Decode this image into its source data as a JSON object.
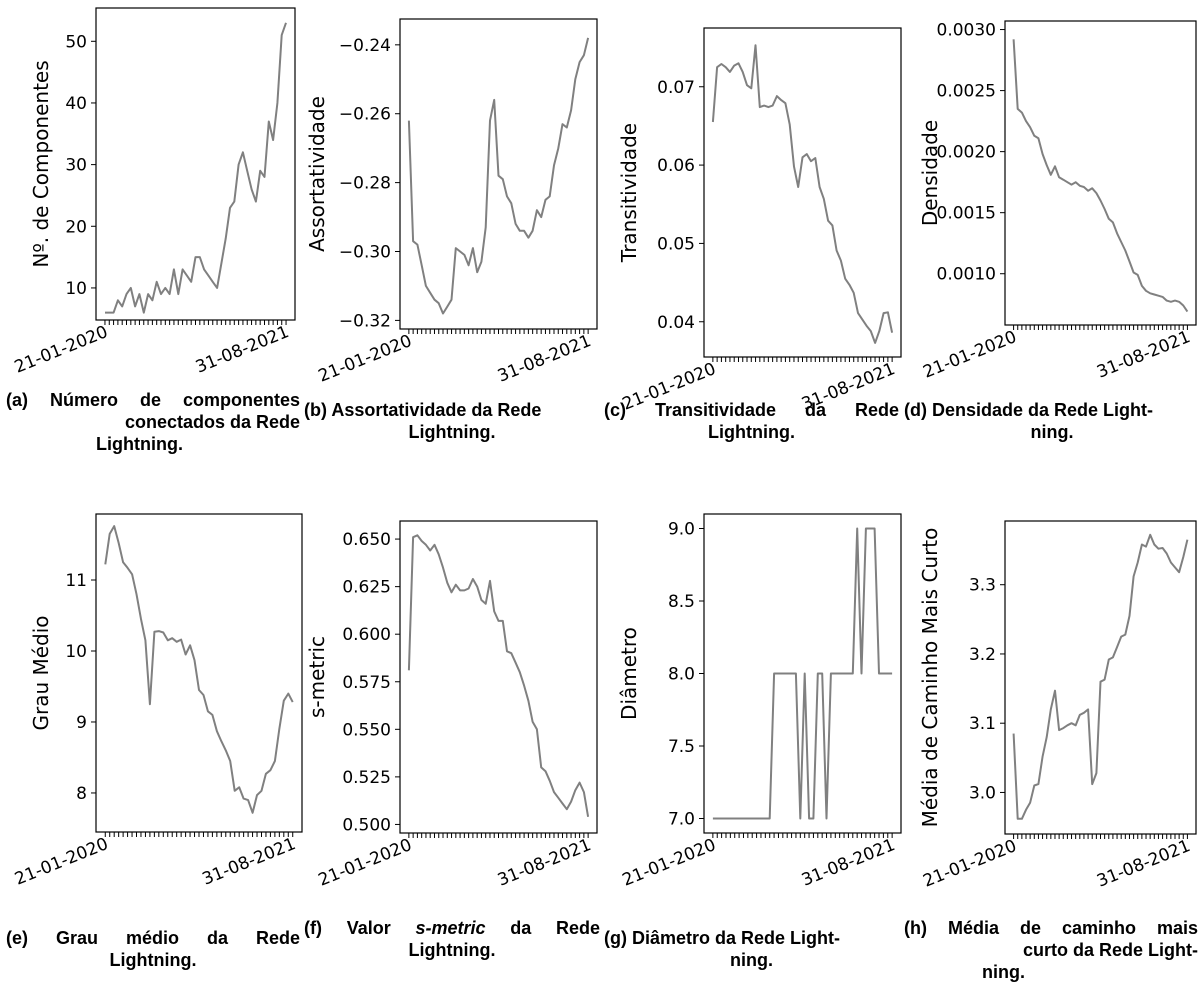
{
  "chart_data": [
    {
      "type": "line",
      "ylabel": "Nº. de Componentes",
      "x_tick_labels": [
        "21-01-2020",
        "31-08-2021"
      ],
      "ylim": [
        4.8,
        55.4
      ],
      "yticks": [
        "10",
        "20",
        "30",
        "40",
        "50"
      ],
      "y_tick_values": [
        10,
        20,
        30,
        40,
        50
      ],
      "series_color": "#808080",
      "values": [
        6,
        6,
        6,
        8,
        7,
        9,
        10,
        7,
        9,
        6,
        9,
        8,
        11,
        9,
        10,
        9,
        13,
        9,
        13,
        12,
        11,
        15,
        15,
        13,
        12,
        11,
        10,
        14,
        18,
        23,
        24,
        30,
        32,
        29,
        26,
        24,
        29,
        28,
        37,
        34,
        40,
        51,
        53
      ]
    },
    {
      "type": "line",
      "ylabel": "Assortatividade",
      "x_tick_labels": [
        "21-01-2020",
        "31-08-2021"
      ],
      "ylim": [
        -0.3225,
        -0.2325
      ],
      "yticks": [
        "−0.24",
        "−0.26",
        "−0.28",
        "−0.30",
        "−0.32"
      ],
      "y_tick_values": [
        -0.24,
        -0.26,
        -0.28,
        -0.3,
        -0.32
      ],
      "series_color": "#808080",
      "values": [
        -0.262,
        -0.297,
        -0.298,
        -0.304,
        -0.31,
        -0.312,
        -0.314,
        -0.315,
        -0.318,
        -0.316,
        -0.314,
        -0.299,
        -0.3,
        -0.301,
        -0.304,
        -0.299,
        -0.306,
        -0.303,
        -0.293,
        -0.262,
        -0.256,
        -0.278,
        -0.279,
        -0.284,
        -0.286,
        -0.292,
        -0.294,
        -0.294,
        -0.296,
        -0.294,
        -0.288,
        -0.29,
        -0.285,
        -0.284,
        -0.275,
        -0.27,
        -0.263,
        -0.264,
        -0.259,
        -0.25,
        -0.245,
        -0.243,
        -0.238
      ]
    },
    {
      "type": "line",
      "ylabel": "Transitividade",
      "x_tick_labels": [
        "21-01-2020",
        "31-08-2021"
      ],
      "ylim": [
        0.0355,
        0.0775
      ],
      "yticks": [
        "0.07",
        "0.06",
        "0.05",
        "0.04"
      ],
      "y_tick_values": [
        0.07,
        0.06,
        0.05,
        0.04
      ],
      "series_color": "#808080",
      "values": [
        0.0655,
        0.0725,
        0.0729,
        0.0725,
        0.0719,
        0.0727,
        0.073,
        0.0719,
        0.0702,
        0.0698,
        0.0753,
        0.0674,
        0.0676,
        0.0674,
        0.0676,
        0.0688,
        0.0683,
        0.0679,
        0.0652,
        0.0598,
        0.0572,
        0.061,
        0.0614,
        0.0605,
        0.0609,
        0.0572,
        0.0557,
        0.0529,
        0.0523,
        0.0491,
        0.0478,
        0.0455,
        0.0447,
        0.0437,
        0.0411,
        0.0403,
        0.0395,
        0.0388,
        0.0373,
        0.0388,
        0.0411,
        0.0412,
        0.0386
      ]
    },
    {
      "type": "line",
      "ylabel": "Densidade",
      "x_tick_labels": [
        "21-01-2020",
        "31-08-2021"
      ],
      "ylim": [
        0.00058,
        0.00307
      ],
      "yticks": [
        "0.0030",
        "0.0025",
        "0.0020",
        "0.0015",
        "0.0010"
      ],
      "y_tick_values": [
        0.003,
        0.0025,
        0.002,
        0.0015,
        0.001
      ],
      "series_color": "#808080",
      "values": [
        0.00292,
        0.00235,
        0.00232,
        0.00225,
        0.0022,
        0.00213,
        0.00211,
        0.00198,
        0.00189,
        0.00181,
        0.00188,
        0.00179,
        0.00177,
        0.00175,
        0.00173,
        0.00175,
        0.00172,
        0.00171,
        0.00168,
        0.0017,
        0.00166,
        0.0016,
        0.00153,
        0.00145,
        0.00142,
        0.00133,
        0.00126,
        0.00119,
        0.0011,
        0.00101,
        0.00099,
        0.0009,
        0.00086,
        0.00084,
        0.00083,
        0.00082,
        0.00081,
        0.00078,
        0.00077,
        0.00078,
        0.00077,
        0.00074,
        0.00069
      ]
    },
    {
      "type": "line",
      "ylabel": "Grau Médio",
      "x_tick_labels": [
        "21-01-2020",
        "31-08-2021"
      ],
      "ylim": [
        7.45,
        11.93
      ],
      "yticks": [
        "11",
        "10",
        "9",
        "8"
      ],
      "y_tick_values": [
        11,
        10,
        9,
        8
      ],
      "series_color": "#808080",
      "values": [
        11.22,
        11.65,
        11.76,
        11.52,
        11.25,
        11.17,
        11.08,
        10.8,
        10.45,
        10.15,
        9.25,
        10.27,
        10.28,
        10.26,
        10.15,
        10.18,
        10.13,
        10.16,
        9.95,
        10.08,
        9.87,
        9.45,
        9.38,
        9.15,
        9.1,
        8.87,
        8.73,
        8.6,
        8.45,
        8.03,
        8.08,
        7.92,
        7.9,
        7.72,
        7.97,
        8.03,
        8.27,
        8.32,
        8.45,
        8.9,
        9.3,
        9.4,
        9.28
      ]
    },
    {
      "type": "line",
      "ylabel": "s-metric",
      "x_tick_labels": [
        "21-01-2020",
        "31-08-2021"
      ],
      "ylim": [
        0.4955,
        0.6595
      ],
      "yticks": [
        "0.650",
        "0.625",
        "0.600",
        "0.575",
        "0.550",
        "0.525",
        "0.500"
      ],
      "y_tick_values": [
        0.65,
        0.625,
        0.6,
        0.575,
        0.55,
        0.525,
        0.5
      ],
      "series_color": "#808080",
      "values": [
        0.581,
        0.651,
        0.652,
        0.649,
        0.647,
        0.644,
        0.647,
        0.642,
        0.635,
        0.627,
        0.622,
        0.626,
        0.623,
        0.623,
        0.624,
        0.629,
        0.625,
        0.618,
        0.616,
        0.628,
        0.612,
        0.607,
        0.607,
        0.591,
        0.59,
        0.585,
        0.58,
        0.573,
        0.565,
        0.554,
        0.55,
        0.53,
        0.528,
        0.523,
        0.517,
        0.514,
        0.511,
        0.508,
        0.512,
        0.518,
        0.522,
        0.517,
        0.504
      ]
    },
    {
      "type": "line",
      "ylabel": "Diâmetro",
      "x_tick_labels": [
        "21-01-2020",
        "31-08-2021"
      ],
      "ylim": [
        6.9,
        9.1
      ],
      "yticks": [
        "9.0",
        "8.5",
        "8.0",
        "7.5",
        "7.0"
      ],
      "y_tick_values": [
        9.0,
        8.5,
        8.0,
        7.5,
        7.0
      ],
      "series_color": "#808080",
      "values": [
        7,
        7,
        7,
        7,
        7,
        7,
        7,
        7,
        7,
        7,
        7,
        7,
        7,
        7,
        8,
        8,
        8,
        8,
        8,
        8,
        7,
        8,
        7,
        7,
        8,
        8,
        7,
        8,
        8,
        8,
        8,
        8,
        8,
        9,
        8,
        9,
        9,
        9,
        8,
        8,
        8,
        8
      ]
    },
    {
      "type": "line",
      "ylabel": "Média de Caminho Mais Curto",
      "x_tick_labels": [
        "21-01-2020",
        "31-08-2021"
      ],
      "ylim": [
        2.94,
        3.392
      ],
      "yticks": [
        "3.3",
        "3.2",
        "3.1",
        "3.0"
      ],
      "y_tick_values": [
        3.3,
        3.2,
        3.1,
        3.0
      ],
      "series_color": "#808080",
      "values": [
        3.085,
        2.962,
        2.962,
        2.975,
        2.985,
        3.01,
        3.012,
        3.052,
        3.08,
        3.12,
        3.147,
        3.09,
        3.093,
        3.097,
        3.1,
        3.097,
        3.112,
        3.115,
        3.12,
        3.012,
        3.028,
        3.16,
        3.163,
        3.192,
        3.195,
        3.21,
        3.225,
        3.228,
        3.255,
        3.312,
        3.332,
        3.358,
        3.355,
        3.372,
        3.358,
        3.352,
        3.353,
        3.345,
        3.332,
        3.325,
        3.318,
        3.34,
        3.365
      ]
    }
  ],
  "captions": [
    {
      "label": "(a)",
      "lines": [
        "Número de componentes",
        "conectados da Rede",
        "Lightning."
      ]
    },
    {
      "label": "(b)",
      "lines": [
        "Assortatividade da Rede",
        "Lightning."
      ]
    },
    {
      "label": "(c)",
      "lines": [
        "Transitividade da Rede",
        "Lightning."
      ]
    },
    {
      "label": "(d)",
      "lines": [
        "Densidade da Rede Light-",
        "ning."
      ]
    },
    {
      "label": "(e)",
      "lines": [
        "Grau médio da Rede",
        "Lightning."
      ]
    },
    {
      "label": "(f)",
      "pre": "Valor ",
      "em": "s-metric",
      "post": " da Rede",
      "lines": [
        "Lightning."
      ]
    },
    {
      "label": "(g)",
      "lines": [
        "Diâmetro da Rede Light-",
        "ning."
      ]
    },
    {
      "label": "(h)",
      "lines": [
        "Média de caminho mais",
        "curto da Rede Light-",
        "ning."
      ]
    }
  ]
}
